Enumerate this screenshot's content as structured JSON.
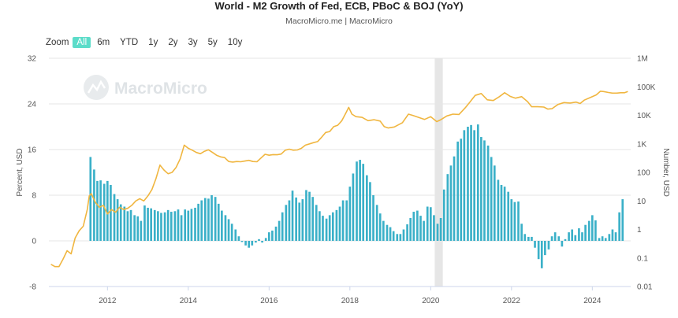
{
  "header": {
    "title": "World - M2 Growth of Fed, ECB, PBoC & BOJ (YoY)",
    "subtitle": "MacroMicro.me | MacroMicro"
  },
  "zoom": {
    "label": "Zoom",
    "buttons": [
      "All",
      "6m",
      "YTD",
      "1y",
      "2y",
      "3y",
      "5y",
      "10y"
    ],
    "active": "All"
  },
  "watermark": {
    "text": "MacroMicro"
  },
  "colors": {
    "line": "#f0b640",
    "bar": "#3ab0c8",
    "band": "#e6e6e6",
    "grid": "#e6e6e6"
  },
  "chart_data": {
    "type": "bar",
    "y_left": {
      "label": "Percent, USD",
      "min": -8,
      "max": 32,
      "ticks": [
        "-8",
        "0",
        "8",
        "16",
        "24",
        "32"
      ]
    },
    "y_right": {
      "label": "Number, USD",
      "scale": "log",
      "min": 0.01,
      "max": 1000000,
      "ticks": [
        "0.01",
        "0.1",
        "1",
        "10",
        "100",
        "1K",
        "10K",
        "100K",
        "1M"
      ]
    },
    "x": {
      "min": 2010.55,
      "max": 2024.95,
      "ticks": [
        "2012",
        "2014",
        "2016",
        "2018",
        "2020",
        "2022",
        "2024"
      ]
    },
    "shaded_period": [
      2020.1,
      2020.3
    ],
    "series": [
      {
        "type": "bar",
        "axis": "left",
        "points": [
          [
            2011.58,
            14.7
          ],
          [
            2011.67,
            12.5
          ],
          [
            2011.75,
            10.5
          ],
          [
            2011.83,
            10.6
          ],
          [
            2011.92,
            10.0
          ],
          [
            2012.0,
            10.5
          ],
          [
            2012.08,
            9.8
          ],
          [
            2012.17,
            8.2
          ],
          [
            2012.25,
            7.3
          ],
          [
            2012.33,
            6.4
          ],
          [
            2012.42,
            6.0
          ],
          [
            2012.5,
            5.2
          ],
          [
            2012.58,
            5.4
          ],
          [
            2012.67,
            4.5
          ],
          [
            2012.75,
            4.3
          ],
          [
            2012.83,
            3.5
          ],
          [
            2012.92,
            6.2
          ],
          [
            2013.0,
            5.8
          ],
          [
            2013.08,
            5.7
          ],
          [
            2013.17,
            5.4
          ],
          [
            2013.25,
            5.2
          ],
          [
            2013.33,
            4.9
          ],
          [
            2013.42,
            5.0
          ],
          [
            2013.5,
            5.4
          ],
          [
            2013.58,
            5.1
          ],
          [
            2013.67,
            5.2
          ],
          [
            2013.75,
            5.5
          ],
          [
            2013.83,
            4.5
          ],
          [
            2013.92,
            5.5
          ],
          [
            2014.0,
            5.3
          ],
          [
            2014.08,
            5.6
          ],
          [
            2014.17,
            5.8
          ],
          [
            2014.25,
            6.5
          ],
          [
            2014.33,
            7.1
          ],
          [
            2014.42,
            7.5
          ],
          [
            2014.5,
            7.4
          ],
          [
            2014.58,
            8.0
          ],
          [
            2014.67,
            7.7
          ],
          [
            2014.75,
            6.5
          ],
          [
            2014.83,
            5.3
          ],
          [
            2014.92,
            4.5
          ],
          [
            2015.0,
            3.8
          ],
          [
            2015.08,
            3.0
          ],
          [
            2015.17,
            2.0
          ],
          [
            2015.25,
            0.8
          ],
          [
            2015.33,
            -0.2
          ],
          [
            2015.42,
            -0.8
          ],
          [
            2015.5,
            -1.2
          ],
          [
            2015.58,
            -0.8
          ],
          [
            2015.67,
            -0.3
          ],
          [
            2015.75,
            0.3
          ],
          [
            2015.83,
            -0.3
          ],
          [
            2015.92,
            0.5
          ],
          [
            2016.0,
            1.5
          ],
          [
            2016.08,
            1.8
          ],
          [
            2016.17,
            2.5
          ],
          [
            2016.25,
            3.5
          ],
          [
            2016.33,
            5.0
          ],
          [
            2016.42,
            6.3
          ],
          [
            2016.5,
            7.1
          ],
          [
            2016.58,
            8.8
          ],
          [
            2016.67,
            7.6
          ],
          [
            2016.75,
            6.7
          ],
          [
            2016.83,
            7.3
          ],
          [
            2016.92,
            8.9
          ],
          [
            2017.0,
            8.6
          ],
          [
            2017.08,
            7.7
          ],
          [
            2017.17,
            6.3
          ],
          [
            2017.25,
            5.2
          ],
          [
            2017.33,
            4.4
          ],
          [
            2017.42,
            3.9
          ],
          [
            2017.5,
            4.5
          ],
          [
            2017.58,
            5.0
          ],
          [
            2017.67,
            5.4
          ],
          [
            2017.75,
            6.0
          ],
          [
            2017.83,
            7.1
          ],
          [
            2017.92,
            7.1
          ],
          [
            2018.0,
            9.5
          ],
          [
            2018.08,
            11.8
          ],
          [
            2018.17,
            13.9
          ],
          [
            2018.25,
            14.2
          ],
          [
            2018.33,
            13.5
          ],
          [
            2018.42,
            11.5
          ],
          [
            2018.5,
            10.3
          ],
          [
            2018.58,
            8.0
          ],
          [
            2018.67,
            6.3
          ],
          [
            2018.75,
            4.8
          ],
          [
            2018.83,
            3.5
          ],
          [
            2018.92,
            2.8
          ],
          [
            2019.0,
            2.4
          ],
          [
            2019.08,
            1.7
          ],
          [
            2019.17,
            1.2
          ],
          [
            2019.25,
            1.2
          ],
          [
            2019.33,
            2.0
          ],
          [
            2019.42,
            2.9
          ],
          [
            2019.5,
            4.0
          ],
          [
            2019.58,
            5.1
          ],
          [
            2019.67,
            5.3
          ],
          [
            2019.75,
            4.4
          ],
          [
            2019.83,
            3.5
          ],
          [
            2019.92,
            6.0
          ],
          [
            2020.0,
            5.9
          ],
          [
            2020.08,
            4.5
          ],
          [
            2020.17,
            3.0
          ],
          [
            2020.25,
            4.0
          ],
          [
            2020.33,
            9.0
          ],
          [
            2020.42,
            11.7
          ],
          [
            2020.5,
            13.2
          ],
          [
            2020.58,
            14.8
          ],
          [
            2020.67,
            17.4
          ],
          [
            2020.75,
            17.9
          ],
          [
            2020.83,
            19.4
          ],
          [
            2020.92,
            20.0
          ],
          [
            2021.0,
            20.3
          ],
          [
            2021.08,
            19.4
          ],
          [
            2021.17,
            20.4
          ],
          [
            2021.25,
            18.2
          ],
          [
            2021.33,
            17.6
          ],
          [
            2021.42,
            16.7
          ],
          [
            2021.5,
            14.7
          ],
          [
            2021.58,
            13.2
          ],
          [
            2021.67,
            10.7
          ],
          [
            2021.75,
            9.8
          ],
          [
            2021.83,
            9.5
          ],
          [
            2021.92,
            8.6
          ],
          [
            2022.0,
            7.3
          ],
          [
            2022.08,
            6.8
          ],
          [
            2022.17,
            6.9
          ],
          [
            2022.25,
            3.0
          ],
          [
            2022.33,
            1.2
          ],
          [
            2022.42,
            0.7
          ],
          [
            2022.5,
            0.7
          ],
          [
            2022.58,
            -1.2
          ],
          [
            2022.67,
            -3.2
          ],
          [
            2022.75,
            -4.8
          ],
          [
            2022.83,
            -2.5
          ],
          [
            2022.92,
            -1.5
          ],
          [
            2023.0,
            0.8
          ],
          [
            2023.08,
            1.5
          ],
          [
            2023.17,
            0.8
          ],
          [
            2023.25,
            -1.0
          ],
          [
            2023.33,
            0.3
          ],
          [
            2023.42,
            1.5
          ],
          [
            2023.5,
            2.0
          ],
          [
            2023.58,
            1.0
          ],
          [
            2023.67,
            2.2
          ],
          [
            2023.75,
            1.5
          ],
          [
            2023.83,
            2.8
          ],
          [
            2023.92,
            3.5
          ],
          [
            2024.0,
            4.5
          ],
          [
            2024.08,
            3.6
          ],
          [
            2024.17,
            0.5
          ],
          [
            2024.25,
            0.8
          ],
          [
            2024.33,
            0.5
          ],
          [
            2024.42,
            1.2
          ],
          [
            2024.5,
            2.0
          ],
          [
            2024.58,
            1.5
          ],
          [
            2024.67,
            5.0
          ],
          [
            2024.75,
            7.3
          ]
        ]
      },
      {
        "type": "line",
        "axis": "right",
        "points": [
          [
            2010.6,
            0.06
          ],
          [
            2010.7,
            0.05
          ],
          [
            2010.8,
            0.05
          ],
          [
            2010.9,
            0.09
          ],
          [
            2011.0,
            0.18
          ],
          [
            2011.1,
            0.14
          ],
          [
            2011.2,
            0.5
          ],
          [
            2011.3,
            0.9
          ],
          [
            2011.4,
            1.3
          ],
          [
            2011.5,
            5.0
          ],
          [
            2011.55,
            15.0
          ],
          [
            2011.6,
            18.0
          ],
          [
            2011.7,
            9.0
          ],
          [
            2011.8,
            6.0
          ],
          [
            2011.9,
            7.0
          ],
          [
            2012.0,
            3.5
          ],
          [
            2012.1,
            5.0
          ],
          [
            2012.2,
            4.0
          ],
          [
            2012.3,
            6.0
          ],
          [
            2012.4,
            5.0
          ],
          [
            2012.5,
            5.5
          ],
          [
            2012.6,
            7.0
          ],
          [
            2012.7,
            10.0
          ],
          [
            2012.8,
            12.0
          ],
          [
            2012.9,
            10.0
          ],
          [
            2013.0,
            15.0
          ],
          [
            2013.1,
            25.0
          ],
          [
            2013.2,
            60.0
          ],
          [
            2013.3,
            180.0
          ],
          [
            2013.4,
            120.0
          ],
          [
            2013.5,
            90.0
          ],
          [
            2013.6,
            100.0
          ],
          [
            2013.7,
            150.0
          ],
          [
            2013.8,
            300.0
          ],
          [
            2013.9,
            900.0
          ],
          [
            2014.0,
            700.0
          ],
          [
            2014.1,
            600.0
          ],
          [
            2014.2,
            500.0
          ],
          [
            2014.3,
            450.0
          ],
          [
            2014.4,
            550.0
          ],
          [
            2014.5,
            620.0
          ],
          [
            2014.6,
            500.0
          ],
          [
            2014.7,
            400.0
          ],
          [
            2014.8,
            350.0
          ],
          [
            2014.9,
            330.0
          ],
          [
            2015.0,
            240.0
          ],
          [
            2015.1,
            230.0
          ],
          [
            2015.2,
            240.0
          ],
          [
            2015.3,
            235.0
          ],
          [
            2015.4,
            250.0
          ],
          [
            2015.5,
            265.0
          ],
          [
            2015.6,
            240.0
          ],
          [
            2015.7,
            235.0
          ],
          [
            2015.8,
            320.0
          ],
          [
            2015.9,
            430.0
          ],
          [
            2016.0,
            400.0
          ],
          [
            2016.1,
            420.0
          ],
          [
            2016.2,
            415.0
          ],
          [
            2016.3,
            440.0
          ],
          [
            2016.4,
            600.0
          ],
          [
            2016.5,
            650.0
          ],
          [
            2016.6,
            600.0
          ],
          [
            2016.7,
            610.0
          ],
          [
            2016.8,
            700.0
          ],
          [
            2016.9,
            900.0
          ],
          [
            2017.0,
            1000.0
          ],
          [
            2017.1,
            1100.0
          ],
          [
            2017.2,
            1200.0
          ],
          [
            2017.3,
            1700.0
          ],
          [
            2017.4,
            2500.0
          ],
          [
            2017.5,
            2700.0
          ],
          [
            2017.6,
            4000.0
          ],
          [
            2017.7,
            4500.0
          ],
          [
            2017.8,
            6500.0
          ],
          [
            2017.9,
            12000.0
          ],
          [
            2017.97,
            19000.0
          ],
          [
            2018.05,
            11000.0
          ],
          [
            2018.15,
            9000.0
          ],
          [
            2018.3,
            8500.0
          ],
          [
            2018.45,
            6500.0
          ],
          [
            2018.6,
            7000.0
          ],
          [
            2018.75,
            6300.0
          ],
          [
            2018.85,
            4000.0
          ],
          [
            2018.95,
            3600.0
          ],
          [
            2019.1,
            3900.0
          ],
          [
            2019.3,
            5500.0
          ],
          [
            2019.45,
            11000.0
          ],
          [
            2019.55,
            10000.0
          ],
          [
            2019.7,
            8500.0
          ],
          [
            2019.85,
            7200.0
          ],
          [
            2020.0,
            9000.0
          ],
          [
            2020.15,
            6000.0
          ],
          [
            2020.25,
            7000.0
          ],
          [
            2020.4,
            9500.0
          ],
          [
            2020.55,
            11000.0
          ],
          [
            2020.7,
            10700.0
          ],
          [
            2020.85,
            18000.0
          ],
          [
            2020.97,
            29000.0
          ],
          [
            2021.1,
            50000.0
          ],
          [
            2021.25,
            58000.0
          ],
          [
            2021.4,
            35000.0
          ],
          [
            2021.55,
            33000.0
          ],
          [
            2021.7,
            45000.0
          ],
          [
            2021.83,
            62000.0
          ],
          [
            2021.97,
            46000.0
          ],
          [
            2022.1,
            40000.0
          ],
          [
            2022.25,
            45000.0
          ],
          [
            2022.4,
            30000.0
          ],
          [
            2022.5,
            20000.0
          ],
          [
            2022.65,
            20000.0
          ],
          [
            2022.8,
            19500.0
          ],
          [
            2022.9,
            16500.0
          ],
          [
            2023.0,
            17000.0
          ],
          [
            2023.15,
            24000.0
          ],
          [
            2023.3,
            28000.0
          ],
          [
            2023.45,
            27000.0
          ],
          [
            2023.6,
            29000.0
          ],
          [
            2023.7,
            26000.0
          ],
          [
            2023.8,
            34000.0
          ],
          [
            2023.95,
            42000.0
          ],
          [
            2024.1,
            52000.0
          ],
          [
            2024.2,
            70000.0
          ],
          [
            2024.28,
            68000.0
          ],
          [
            2024.4,
            63000.0
          ],
          [
            2024.5,
            60000.0
          ],
          [
            2024.6,
            60000.0
          ],
          [
            2024.7,
            62000.0
          ],
          [
            2024.8,
            62000.0
          ],
          [
            2024.88,
            68000.0
          ]
        ]
      }
    ]
  }
}
